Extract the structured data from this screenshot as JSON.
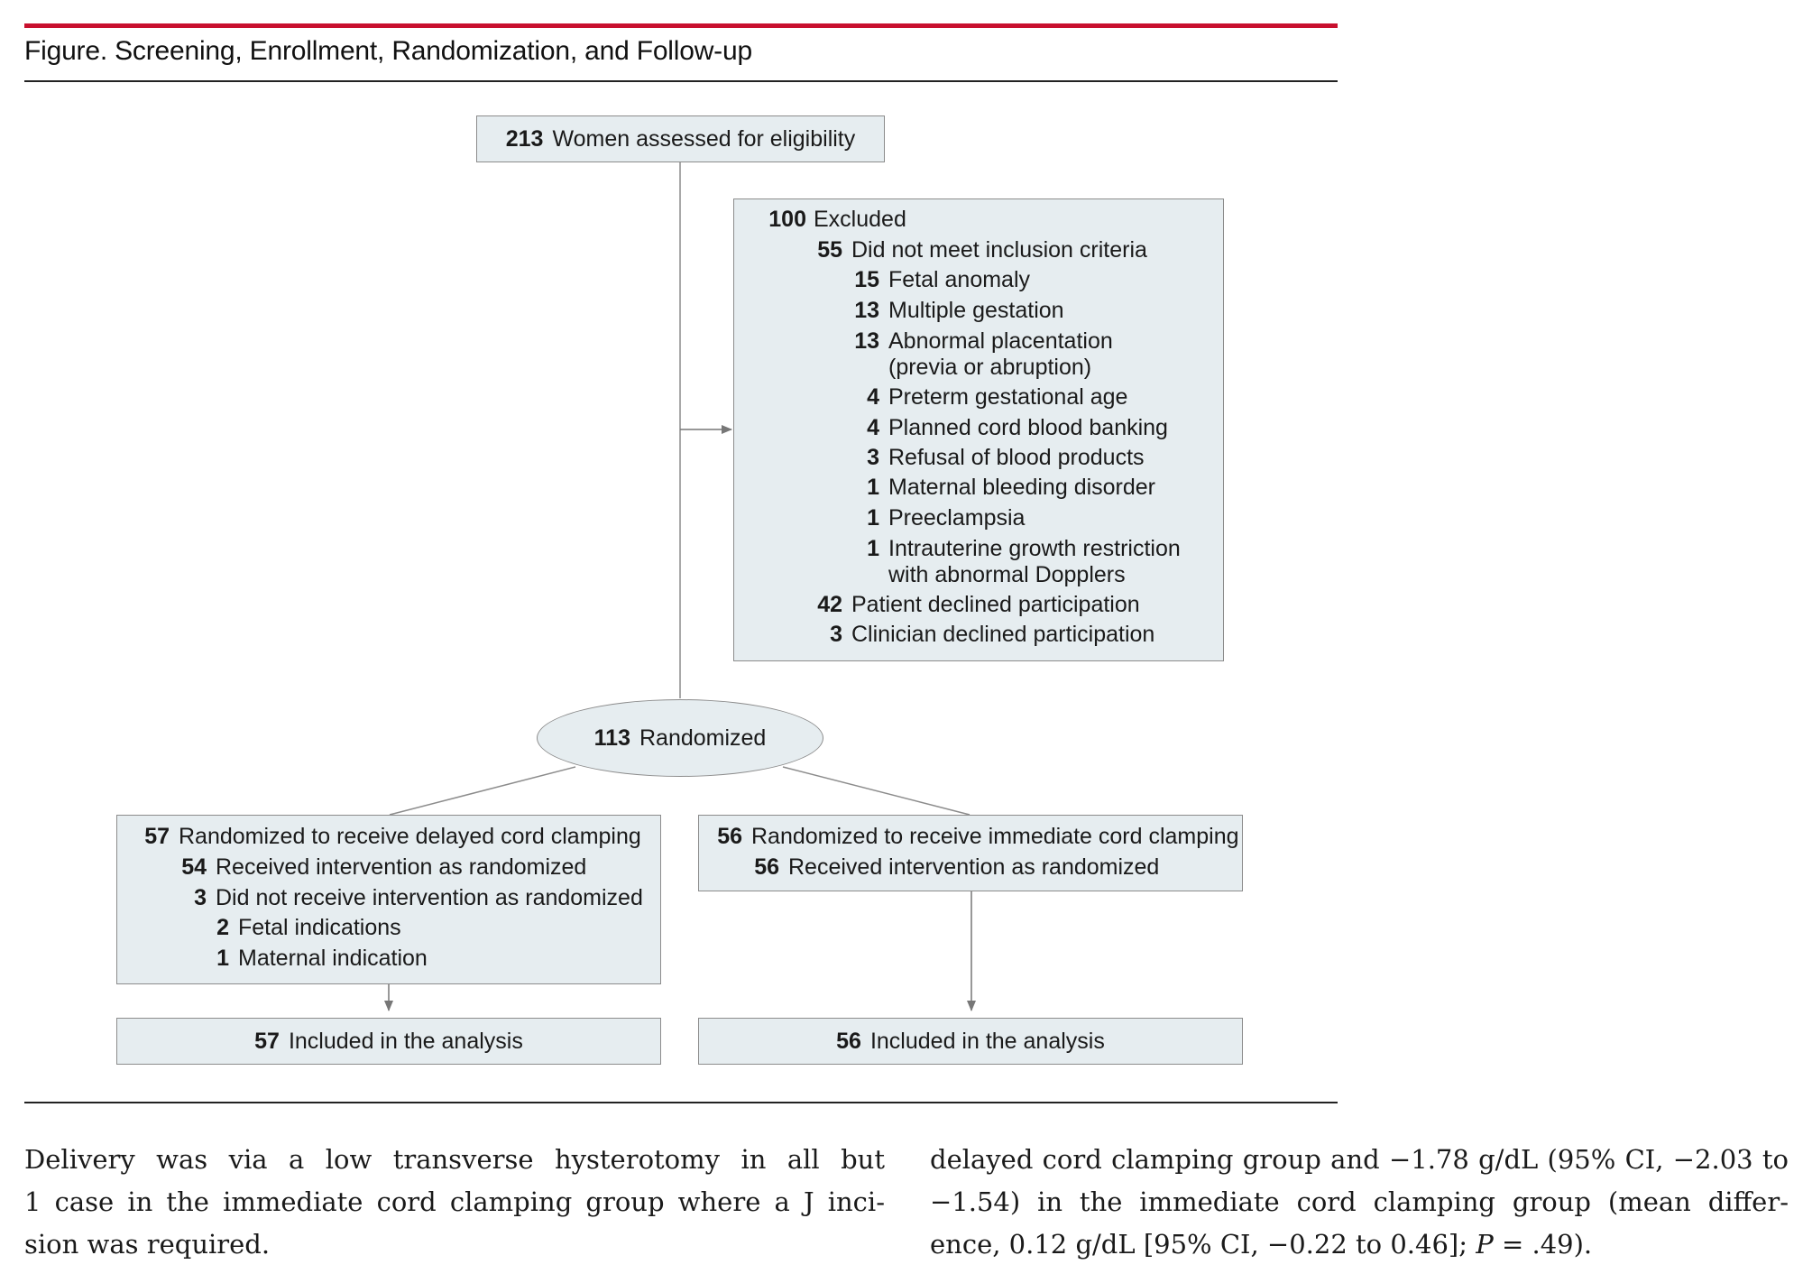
{
  "figure_title": "Figure. Screening, Enrollment, Randomization, and Follow-up",
  "assessed": {
    "num": "213",
    "label": "Women assessed for eligibility"
  },
  "excluded": {
    "header": {
      "num": "100",
      "label": "Excluded"
    },
    "items": [
      {
        "num": "55",
        "label": "Did not meet inclusion criteria",
        "level": 1
      },
      {
        "num": "15",
        "label": "Fetal anomaly",
        "level": 2
      },
      {
        "num": "13",
        "label": "Multiple gestation",
        "level": 2
      },
      {
        "num": "13",
        "label": "Abnormal placentation",
        "level": 2
      },
      {
        "num": "",
        "label": "(previa or abruption)",
        "level": 2
      },
      {
        "num": "4",
        "label": "Preterm gestational age",
        "level": 2
      },
      {
        "num": "4",
        "label": "Planned cord blood banking",
        "level": 2
      },
      {
        "num": "3",
        "label": "Refusal of blood products",
        "level": 2
      },
      {
        "num": "1",
        "label": "Maternal bleeding disorder",
        "level": 2
      },
      {
        "num": "1",
        "label": "Preeclampsia",
        "level": 2
      },
      {
        "num": "1",
        "label": "Intrauterine growth restriction",
        "level": 2
      },
      {
        "num": "",
        "label": "with abnormal Dopplers",
        "level": 2
      },
      {
        "num": "42",
        "label": "Patient declined participation",
        "level": 1
      },
      {
        "num": "3",
        "label": "Clinician declined participation",
        "level": 1
      }
    ]
  },
  "randomized": {
    "num": "113",
    "label": "Randomized"
  },
  "delayed": {
    "header": {
      "num": "57",
      "label": "Randomized to receive delayed cord clamping"
    },
    "items": [
      {
        "num": "54",
        "label": "Received intervention as randomized",
        "level": 1
      },
      {
        "num": "3",
        "label": "Did not receive intervention as randomized",
        "level": 1
      },
      {
        "num": "2",
        "label": "Fetal indications",
        "level": 2
      },
      {
        "num": "1",
        "label": "Maternal indication",
        "level": 2
      }
    ]
  },
  "immediate": {
    "header": {
      "num": "56",
      "label": "Randomized to receive immediate cord clamping"
    },
    "items": [
      {
        "num": "56",
        "label": "Received intervention as randomized",
        "level": 1
      }
    ]
  },
  "analysis_delayed": {
    "num": "57",
    "label": "Included in the analysis"
  },
  "analysis_immediate": {
    "num": "56",
    "label": "Included in the analysis"
  },
  "body_left": [
    "Delivery was via a low transverse hysterotomy in all but",
    "1 case in the immediate cord clamping group where a J inci-",
    "sion was required."
  ],
  "body_right": {
    "line1": "delayed cord clamping group and −1.78 g/dL (95% CI, −2.03 to",
    "line2": "−1.54) in the immediate cord clamping group (mean differ-",
    "line3_pre": "ence, 0.12 g/dL [95% CI, −0.22 to 0.46]; ",
    "line3_p": "P",
    "line3_post": " = .49)."
  }
}
